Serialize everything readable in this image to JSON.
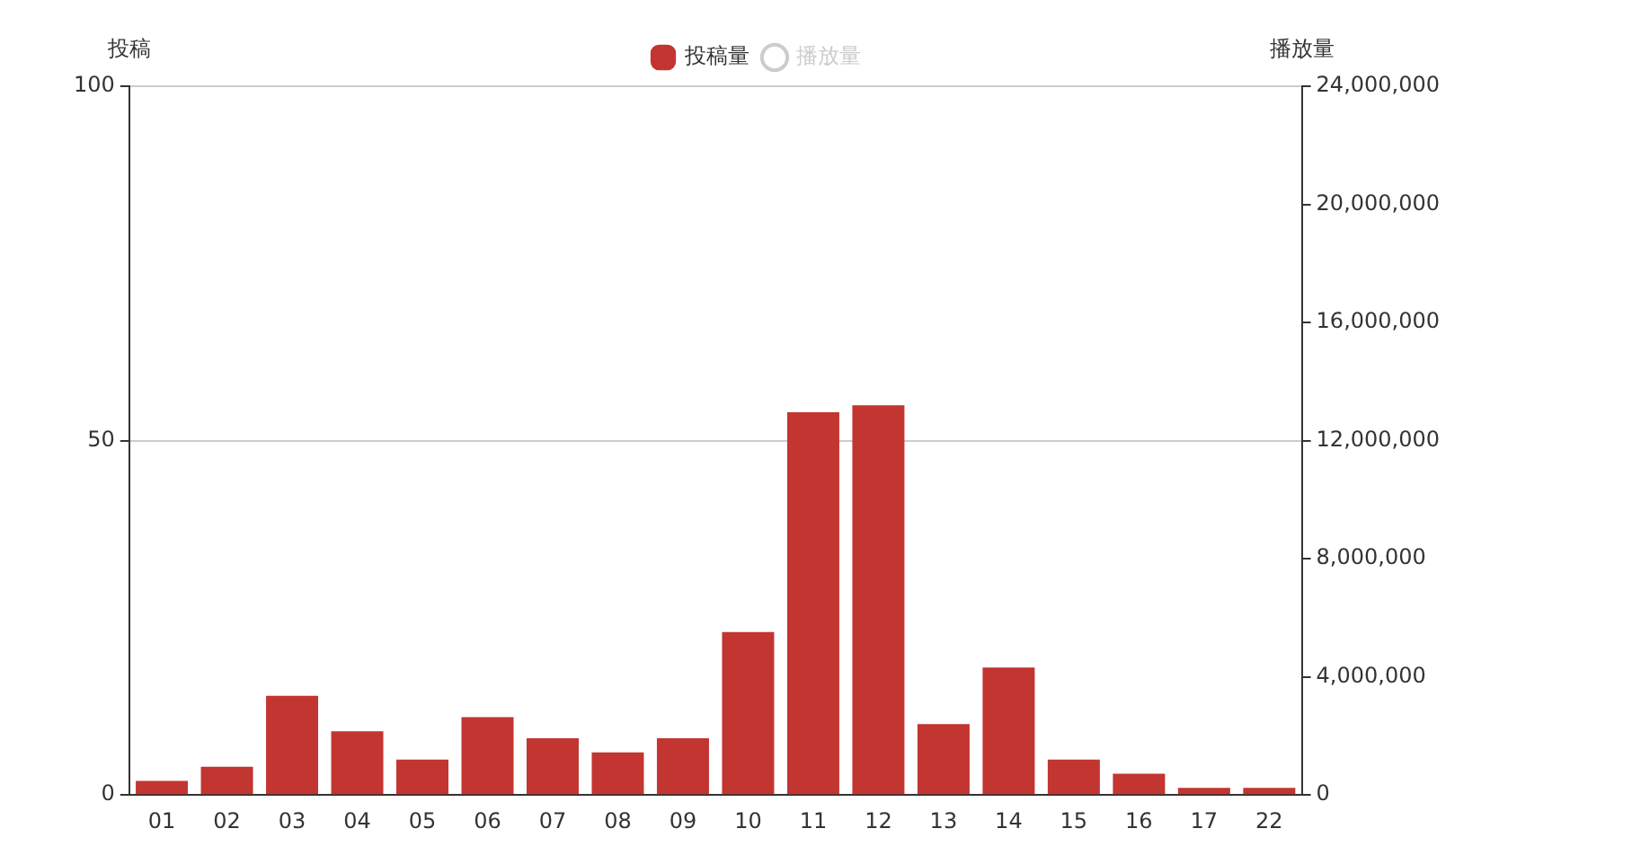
{
  "chart_data": {
    "type": "bar",
    "categories": [
      "01",
      "02",
      "03",
      "04",
      "05",
      "06",
      "07",
      "08",
      "09",
      "10",
      "11",
      "12",
      "13",
      "14",
      "15",
      "16",
      "17",
      "22"
    ],
    "series": [
      {
        "name": "投稿量",
        "color": "#c23531",
        "values": [
          2,
          4,
          14,
          9,
          5,
          11,
          8,
          6,
          8,
          23,
          54,
          55,
          10,
          18,
          5,
          3,
          1,
          1
        ]
      },
      {
        "name": "播放量",
        "type": "line",
        "axis": "y2",
        "color": "#cccccc",
        "marker": "circle",
        "values": [
          null,
          null,
          null,
          null,
          null,
          null,
          null,
          null,
          null,
          null,
          null,
          null,
          null,
          null,
          null,
          null,
          null,
          null
        ]
      }
    ],
    "ylabel": "投稿",
    "y2label": "播放量",
    "ylim": [
      0,
      100
    ],
    "yticks": [
      0,
      50,
      100
    ],
    "y2lim": [
      0,
      24000000
    ],
    "y2ticks": [
      0,
      {
        "value": 4000000,
        "label": "4,000,000"
      },
      {
        "value": 8000000,
        "label": "8,000,000"
      },
      {
        "value": 12000000,
        "label": "12,000,000"
      },
      {
        "value": 16000000,
        "label": "16,000,000"
      },
      {
        "value": 20000000,
        "label": "20,000,000"
      },
      {
        "value": 24000000,
        "label": "24,000,000"
      }
    ],
    "grid": "y",
    "legend": "top"
  }
}
